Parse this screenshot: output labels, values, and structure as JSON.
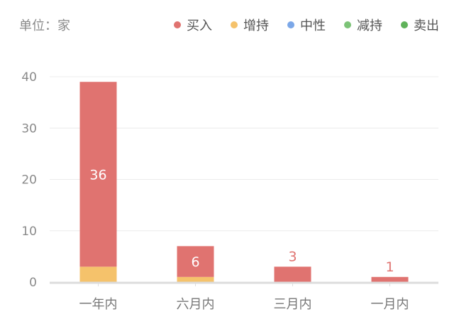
{
  "chart_data": {
    "type": "bar",
    "stacked": true,
    "unit_label": "单位：家",
    "categories": [
      "一年内",
      "六月内",
      "三月内",
      "一月内"
    ],
    "series": [
      {
        "name": "买入",
        "color": "#e07370",
        "values": [
          36,
          6,
          3,
          1
        ]
      },
      {
        "name": "增持",
        "color": "#f5c26b",
        "values": [
          3,
          1,
          0,
          0
        ]
      },
      {
        "name": "中性",
        "color": "#7ba7e8",
        "values": [
          0,
          0,
          0,
          0
        ]
      },
      {
        "name": "减持",
        "color": "#7cc377",
        "values": [
          0,
          0,
          0,
          0
        ]
      },
      {
        "name": "卖出",
        "color": "#5fb25a",
        "values": [
          0,
          0,
          0,
          0
        ]
      }
    ],
    "data_labels": [
      "36",
      "6",
      "3",
      "1"
    ],
    "ylim": [
      0,
      40
    ],
    "yticks": [
      0,
      10,
      20,
      30,
      40
    ],
    "grid": true,
    "legend": "top-right"
  }
}
